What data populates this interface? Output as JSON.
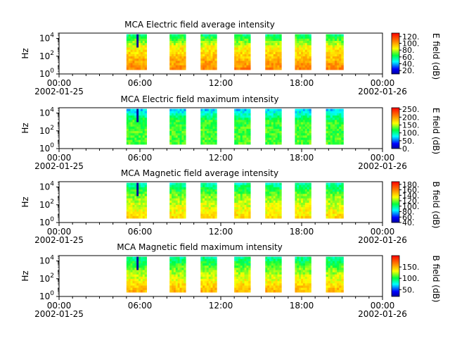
{
  "chart_data": [
    {
      "type": "heatmap",
      "title": "MCA  Electric field average intensity",
      "ylabel": "Hz",
      "ylog": true,
      "ylim": [
        1,
        40000
      ],
      "yticks": [
        {
          "exp": "0"
        },
        {
          "exp": "2"
        },
        {
          "exp": "4"
        }
      ],
      "xlim": [
        0,
        24
      ],
      "xticks": [
        {
          "pos": 0,
          "label": "00:00"
        },
        {
          "pos": 6,
          "label": "06:00"
        },
        {
          "pos": 12,
          "label": "12:00"
        },
        {
          "pos": 18,
          "label": "18:00"
        },
        {
          "pos": 24,
          "label": "00:00"
        }
      ],
      "xdates": [
        "2002-01-25",
        "2002-01-26"
      ],
      "colorbar": {
        "label": "E field (dB)",
        "range": [
          10,
          130
        ],
        "ticks": [
          "120.",
          "100.",
          "80.",
          "60.",
          "40.",
          "20."
        ],
        "tick_values": [
          120,
          100,
          80,
          60,
          40,
          20
        ]
      },
      "coverage_hours": [
        [
          5.0,
          6.5
        ],
        [
          8.2,
          9.4
        ],
        [
          10.5,
          11.7
        ],
        [
          13.0,
          14.2
        ],
        [
          15.3,
          16.5
        ],
        [
          17.5,
          18.7
        ],
        [
          19.8,
          21.1
        ]
      ],
      "freq_range_hz": [
        3,
        30000
      ],
      "intensity_profile_db": {
        "high_freq": 60,
        "mid_freq": 85,
        "low_freq": 105
      }
    },
    {
      "type": "heatmap",
      "title": "MCA  Electric field maximum intensity",
      "ylabel": "Hz",
      "ylog": true,
      "ylim": [
        1,
        40000
      ],
      "yticks": [
        {
          "exp": "0"
        },
        {
          "exp": "2"
        },
        {
          "exp": "4"
        }
      ],
      "xlim": [
        0,
        24
      ],
      "xticks": [
        {
          "pos": 0,
          "label": "00:00"
        },
        {
          "pos": 6,
          "label": "06:00"
        },
        {
          "pos": 12,
          "label": "12:00"
        },
        {
          "pos": 18,
          "label": "18:00"
        },
        {
          "pos": 24,
          "label": "00:00"
        }
      ],
      "xdates": [
        "2002-01-25",
        "2002-01-26"
      ],
      "colorbar": {
        "label": "E field (dB)",
        "range": [
          0,
          260
        ],
        "ticks": [
          "250.",
          "200.",
          "150.",
          "100.",
          "50.",
          "0."
        ],
        "tick_values": [
          250,
          200,
          150,
          100,
          50,
          0
        ]
      },
      "coverage_hours": [
        [
          5.0,
          6.5
        ],
        [
          8.2,
          9.4
        ],
        [
          10.5,
          11.7
        ],
        [
          13.0,
          14.2
        ],
        [
          15.3,
          16.5
        ],
        [
          17.5,
          18.7
        ],
        [
          19.8,
          21.1
        ]
      ],
      "freq_range_hz": [
        3,
        30000
      ],
      "intensity_profile_db": {
        "high_freq": 70,
        "mid_freq": 125,
        "low_freq": 130
      }
    },
    {
      "type": "heatmap",
      "title": "MCA  Magnetic field average intensity",
      "ylabel": "Hz",
      "ylog": true,
      "ylim": [
        1,
        40000
      ],
      "yticks": [
        {
          "exp": "0"
        },
        {
          "exp": "2"
        },
        {
          "exp": "4"
        }
      ],
      "xlim": [
        0,
        24
      ],
      "xticks": [
        {
          "pos": 0,
          "label": "00:00"
        },
        {
          "pos": 6,
          "label": "06:00"
        },
        {
          "pos": 12,
          "label": "12:00"
        },
        {
          "pos": 18,
          "label": "18:00"
        },
        {
          "pos": 24,
          "label": "00:00"
        }
      ],
      "xdates": [
        "2002-01-25",
        "2002-01-26"
      ],
      "colorbar": {
        "label": "B field (dB)",
        "range": [
          40,
          190
        ],
        "ticks": [
          "180.",
          "160.",
          "140.",
          "120.",
          "100.",
          "80.",
          "60.",
          "40."
        ],
        "tick_values": [
          180,
          160,
          140,
          120,
          100,
          80,
          60,
          40
        ]
      },
      "coverage_hours": [
        [
          5.0,
          6.5
        ],
        [
          8.2,
          9.4
        ],
        [
          10.5,
          11.7
        ],
        [
          13.0,
          14.2
        ],
        [
          15.3,
          16.5
        ],
        [
          17.5,
          18.7
        ],
        [
          19.8,
          21.1
        ]
      ],
      "freq_range_hz": [
        3,
        30000
      ],
      "intensity_profile_db": {
        "high_freq": 95,
        "mid_freq": 120,
        "low_freq": 140
      }
    },
    {
      "type": "heatmap",
      "title": "MCA  Magnetic field maximum intensity",
      "ylabel": "Hz",
      "ylog": true,
      "ylim": [
        1,
        40000
      ],
      "yticks": [
        {
          "exp": "0"
        },
        {
          "exp": "2"
        },
        {
          "exp": "4"
        }
      ],
      "xlim": [
        0,
        24
      ],
      "xticks": [
        {
          "pos": 0,
          "label": "00:00"
        },
        {
          "pos": 6,
          "label": "06:00"
        },
        {
          "pos": 12,
          "label": "12:00"
        },
        {
          "pos": 18,
          "label": "18:00"
        },
        {
          "pos": 24,
          "label": "00:00"
        }
      ],
      "xdates": [
        "2002-01-25",
        "2002-01-26"
      ],
      "colorbar": {
        "label": "B field (dB)",
        "range": [
          20,
          200
        ],
        "ticks": [
          "150.",
          "100.",
          "50."
        ],
        "tick_values": [
          150,
          100,
          50
        ]
      },
      "coverage_hours": [
        [
          5.0,
          6.5
        ],
        [
          8.2,
          9.4
        ],
        [
          10.5,
          11.7
        ],
        [
          13.0,
          14.2
        ],
        [
          15.3,
          16.5
        ],
        [
          17.5,
          18.7
        ],
        [
          19.8,
          21.1
        ]
      ],
      "freq_range_hz": [
        3,
        30000
      ],
      "intensity_profile_db": {
        "high_freq": 90,
        "mid_freq": 115,
        "low_freq": 150
      }
    }
  ]
}
